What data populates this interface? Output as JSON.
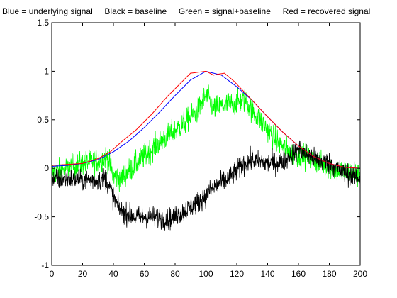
{
  "chart_data": {
    "type": "line",
    "title": "Blue = underlying signal     Black = baseline     Green = signal+baseline     Red = recovered signal",
    "xlabel": "",
    "ylabel": "",
    "xlim": [
      0,
      200
    ],
    "ylim": [
      -1,
      1.5
    ],
    "xticks": [
      0,
      20,
      40,
      60,
      80,
      100,
      120,
      140,
      160,
      180,
      200
    ],
    "yticks": [
      -1,
      -0.5,
      0,
      0.5,
      1,
      1.5
    ],
    "xtick_labels": [
      "0",
      "20",
      "40",
      "60",
      "80",
      "100",
      "120",
      "140",
      "160",
      "180",
      "200"
    ],
    "ytick_labels": [
      "-1",
      "-0.5",
      "0",
      "0.5",
      "1",
      "1.5"
    ],
    "grid": false,
    "series": [
      {
        "color": "#0000ff",
        "noise": 0,
        "x": [
          0,
          10,
          20,
          30,
          40,
          50,
          60,
          70,
          80,
          90,
          100,
          110,
          120,
          130,
          140,
          150,
          160,
          170,
          180,
          190,
          200
        ],
        "values": [
          0.02,
          0.03,
          0.05,
          0.09,
          0.17,
          0.28,
          0.42,
          0.58,
          0.75,
          0.91,
          1.0,
          0.96,
          0.84,
          0.7,
          0.53,
          0.37,
          0.23,
          0.12,
          0.05,
          0.01,
          0.0
        ]
      },
      {
        "color": "#ff0000",
        "noise": 0,
        "x": [
          0,
          10,
          20,
          30,
          38,
          45,
          55,
          65,
          75,
          85,
          90,
          95,
          100,
          105,
          108,
          112,
          118,
          130,
          140,
          150,
          160,
          170,
          180,
          190,
          200
        ],
        "values": [
          0.03,
          0.04,
          0.05,
          0.1,
          0.17,
          0.27,
          0.4,
          0.56,
          0.74,
          0.9,
          0.98,
          0.99,
          1.0,
          0.96,
          0.97,
          0.98,
          0.9,
          0.7,
          0.53,
          0.37,
          0.23,
          0.12,
          0.05,
          0.01,
          0.0
        ]
      },
      {
        "color": "#00ff00",
        "noise": 0.09,
        "x": [
          0,
          10,
          20,
          30,
          36,
          40,
          45,
          55,
          65,
          75,
          85,
          95,
          100,
          105,
          115,
          125,
          135,
          145,
          155,
          165,
          175,
          185,
          195,
          200
        ],
        "values": [
          -0.05,
          0.0,
          0.05,
          0.08,
          0.12,
          -0.08,
          -0.1,
          0.05,
          0.2,
          0.33,
          0.45,
          0.6,
          0.75,
          0.62,
          0.66,
          0.7,
          0.5,
          0.3,
          0.15,
          0.12,
          0.05,
          -0.02,
          -0.05,
          -0.08
        ]
      },
      {
        "color": "#000000",
        "noise": 0.08,
        "x": [
          0,
          10,
          20,
          30,
          35,
          40,
          45,
          55,
          65,
          75,
          85,
          95,
          105,
          115,
          125,
          130,
          140,
          150,
          160,
          170,
          180,
          190,
          200
        ],
        "values": [
          -0.12,
          -0.1,
          -0.12,
          -0.12,
          -0.1,
          -0.3,
          -0.45,
          -0.5,
          -0.5,
          -0.53,
          -0.45,
          -0.35,
          -0.2,
          -0.1,
          0.05,
          0.08,
          0.05,
          0.07,
          0.2,
          0.1,
          0.05,
          -0.05,
          -0.1
        ]
      }
    ]
  }
}
